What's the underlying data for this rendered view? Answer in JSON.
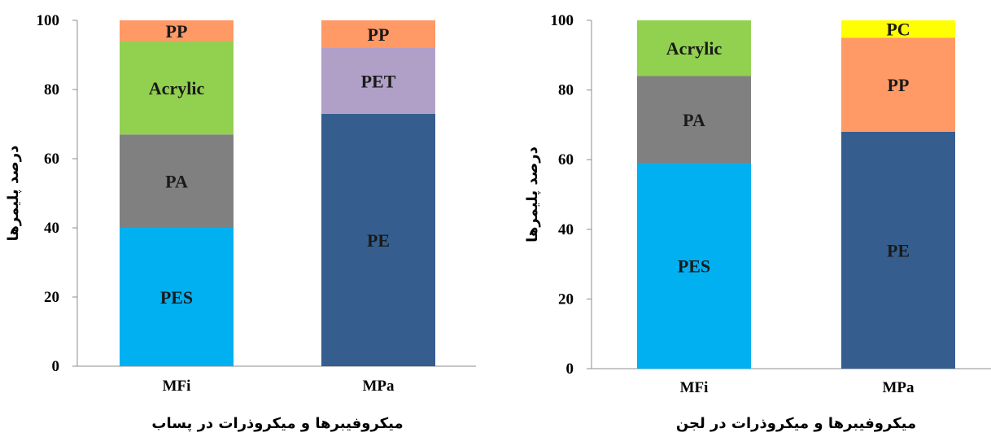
{
  "chart_data": [
    {
      "type": "bar",
      "stacked": true,
      "categories": [
        "MFi",
        "MPa"
      ],
      "xlabel": "میکروفیبرها و میکروذرات در پساب",
      "ylabel": "درصد پلیمرها",
      "ylim": [
        0,
        100
      ],
      "yticks": [
        "0",
        "20",
        "40",
        "60",
        "80",
        "100"
      ],
      "grid": false,
      "stacks": [
        [
          {
            "name": "PES",
            "value": 40,
            "color": "#00B0F0"
          },
          {
            "name": "PA",
            "value": 27,
            "color": "#808080"
          },
          {
            "name": "Acrylic",
            "value": 27,
            "color": "#92D050"
          },
          {
            "name": "PP",
            "value": 6,
            "color": "#FF9966"
          }
        ],
        [
          {
            "name": "PE",
            "value": 73,
            "color": "#355E8F"
          },
          {
            "name": "PET",
            "value": 19,
            "color": "#B0A0C8"
          },
          {
            "name": "PP",
            "value": 8,
            "color": "#FF9966"
          }
        ]
      ]
    },
    {
      "type": "bar",
      "stacked": true,
      "categories": [
        "MFi",
        "MPa"
      ],
      "xlabel": "میکروفیبرها و میکروذرات در لجن",
      "ylabel": "درصد پلیمرها",
      "ylim": [
        0,
        100
      ],
      "yticks": [
        "0",
        "20",
        "40",
        "60",
        "80",
        "100"
      ],
      "grid": false,
      "stacks": [
        [
          {
            "name": "PES",
            "value": 59,
            "color": "#00B0F0"
          },
          {
            "name": "PA",
            "value": 25,
            "color": "#808080"
          },
          {
            "name": "Acrylic",
            "value": 16,
            "color": "#92D050"
          }
        ],
        [
          {
            "name": "PE",
            "value": 68,
            "color": "#355E8F"
          },
          {
            "name": "PP",
            "value": 27,
            "color": "#FF9966"
          },
          {
            "name": "PC",
            "value": 5,
            "color": "#FFFF00"
          }
        ]
      ]
    }
  ]
}
